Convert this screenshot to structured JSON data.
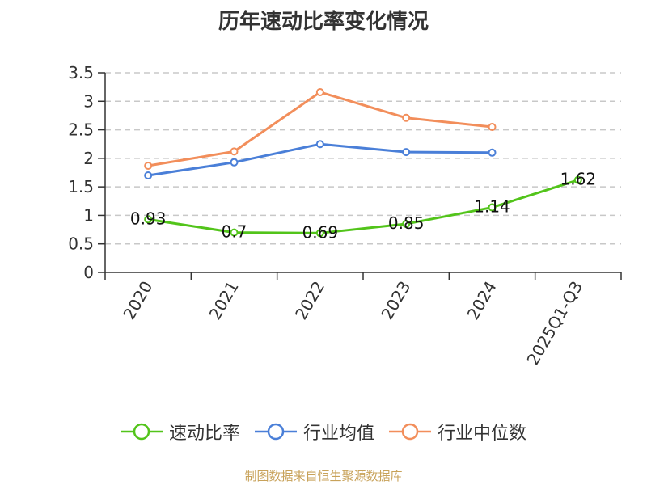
{
  "chart_data": {
    "type": "line",
    "title": "历年速动比率变化情况",
    "categories": [
      "2020",
      "2021",
      "2022",
      "2023",
      "2024",
      "2025Q1-Q3"
    ],
    "ylim": [
      0,
      3.5
    ],
    "yticks": [
      "0",
      "0.5",
      "1",
      "1.5",
      "2",
      "2.5",
      "3",
      "3.5"
    ],
    "grid": true,
    "legend_position": "bottom",
    "series": [
      {
        "name": "速动比率",
        "color": "#52c41a",
        "values": [
          0.93,
          0.7,
          0.69,
          0.85,
          1.14,
          1.62
        ],
        "labels": [
          "0.93",
          "0.7",
          "0.69",
          "0.85",
          "1.14",
          "1.62"
        ]
      },
      {
        "name": "行业均值",
        "color": "#4a7fd8",
        "values": [
          1.7,
          1.93,
          2.25,
          2.11,
          2.1,
          null
        ]
      },
      {
        "name": "行业中位数",
        "color": "#f28e5b",
        "values": [
          1.87,
          2.12,
          3.16,
          2.71,
          2.55,
          null
        ]
      }
    ]
  },
  "source": "制图数据来自恒生聚源数据库"
}
